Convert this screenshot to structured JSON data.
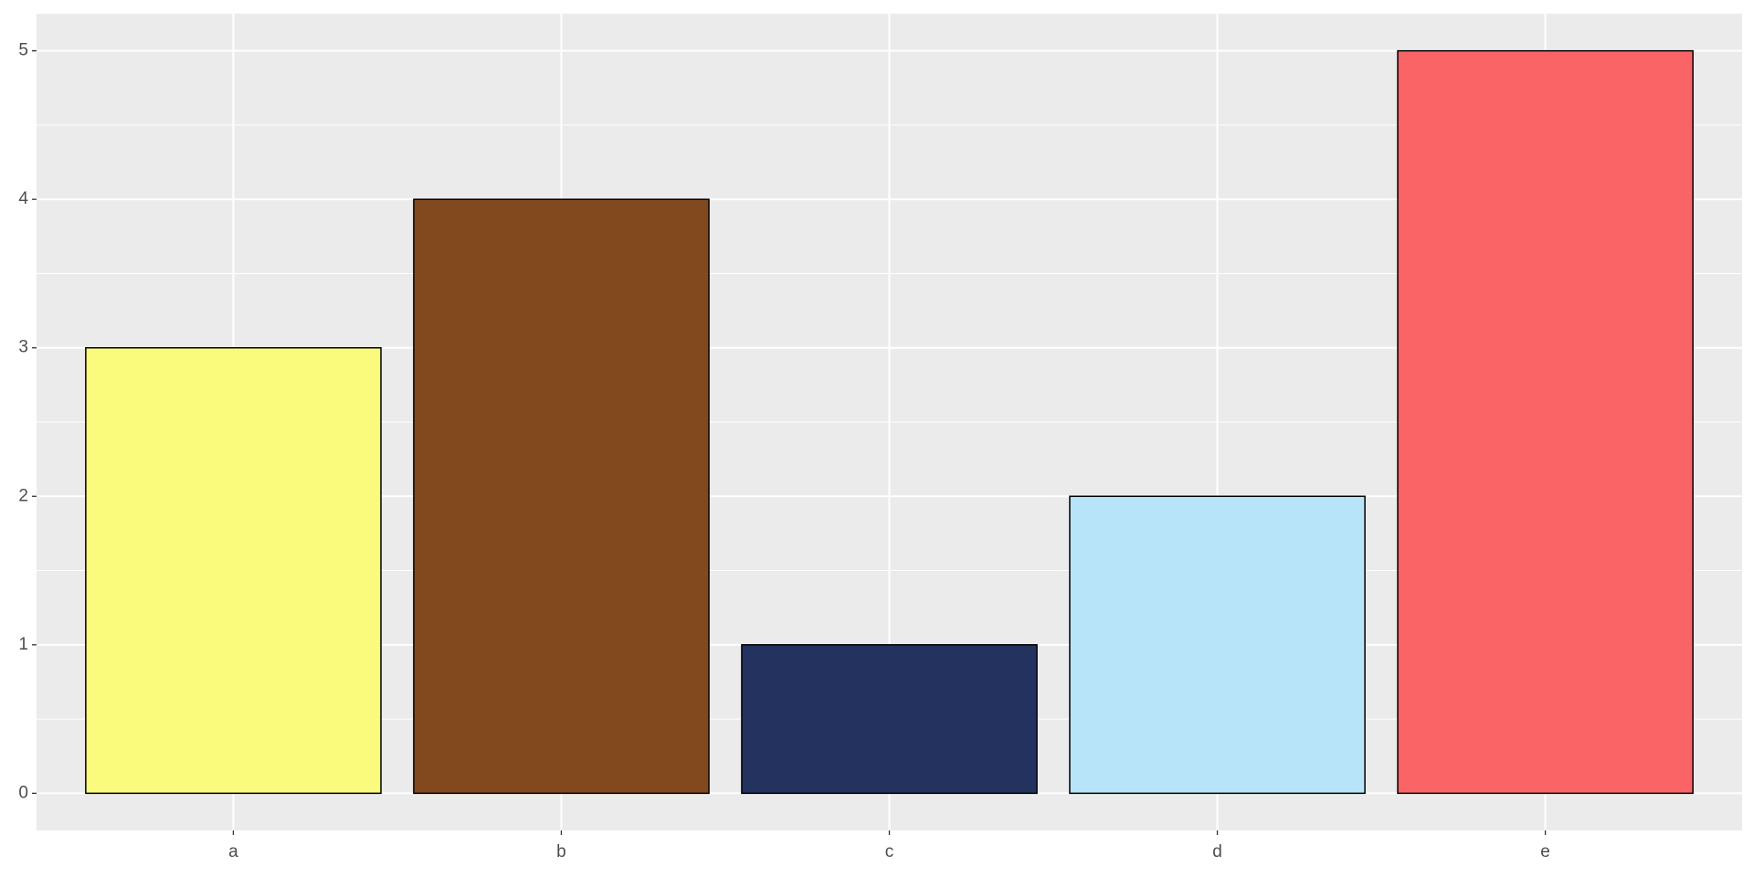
{
  "chart_data": {
    "type": "bar",
    "categories": [
      "a",
      "b",
      "c",
      "d",
      "e"
    ],
    "values": [
      3,
      4,
      1,
      2,
      5
    ],
    "colors": [
      "#FAFA7D",
      "#82491E",
      "#24325F",
      "#B7E4F9",
      "#FB6467"
    ],
    "ylim": [
      -0.25,
      5.25
    ],
    "yticks": [
      0,
      1,
      2,
      3,
      4,
      5
    ],
    "grid": true
  }
}
